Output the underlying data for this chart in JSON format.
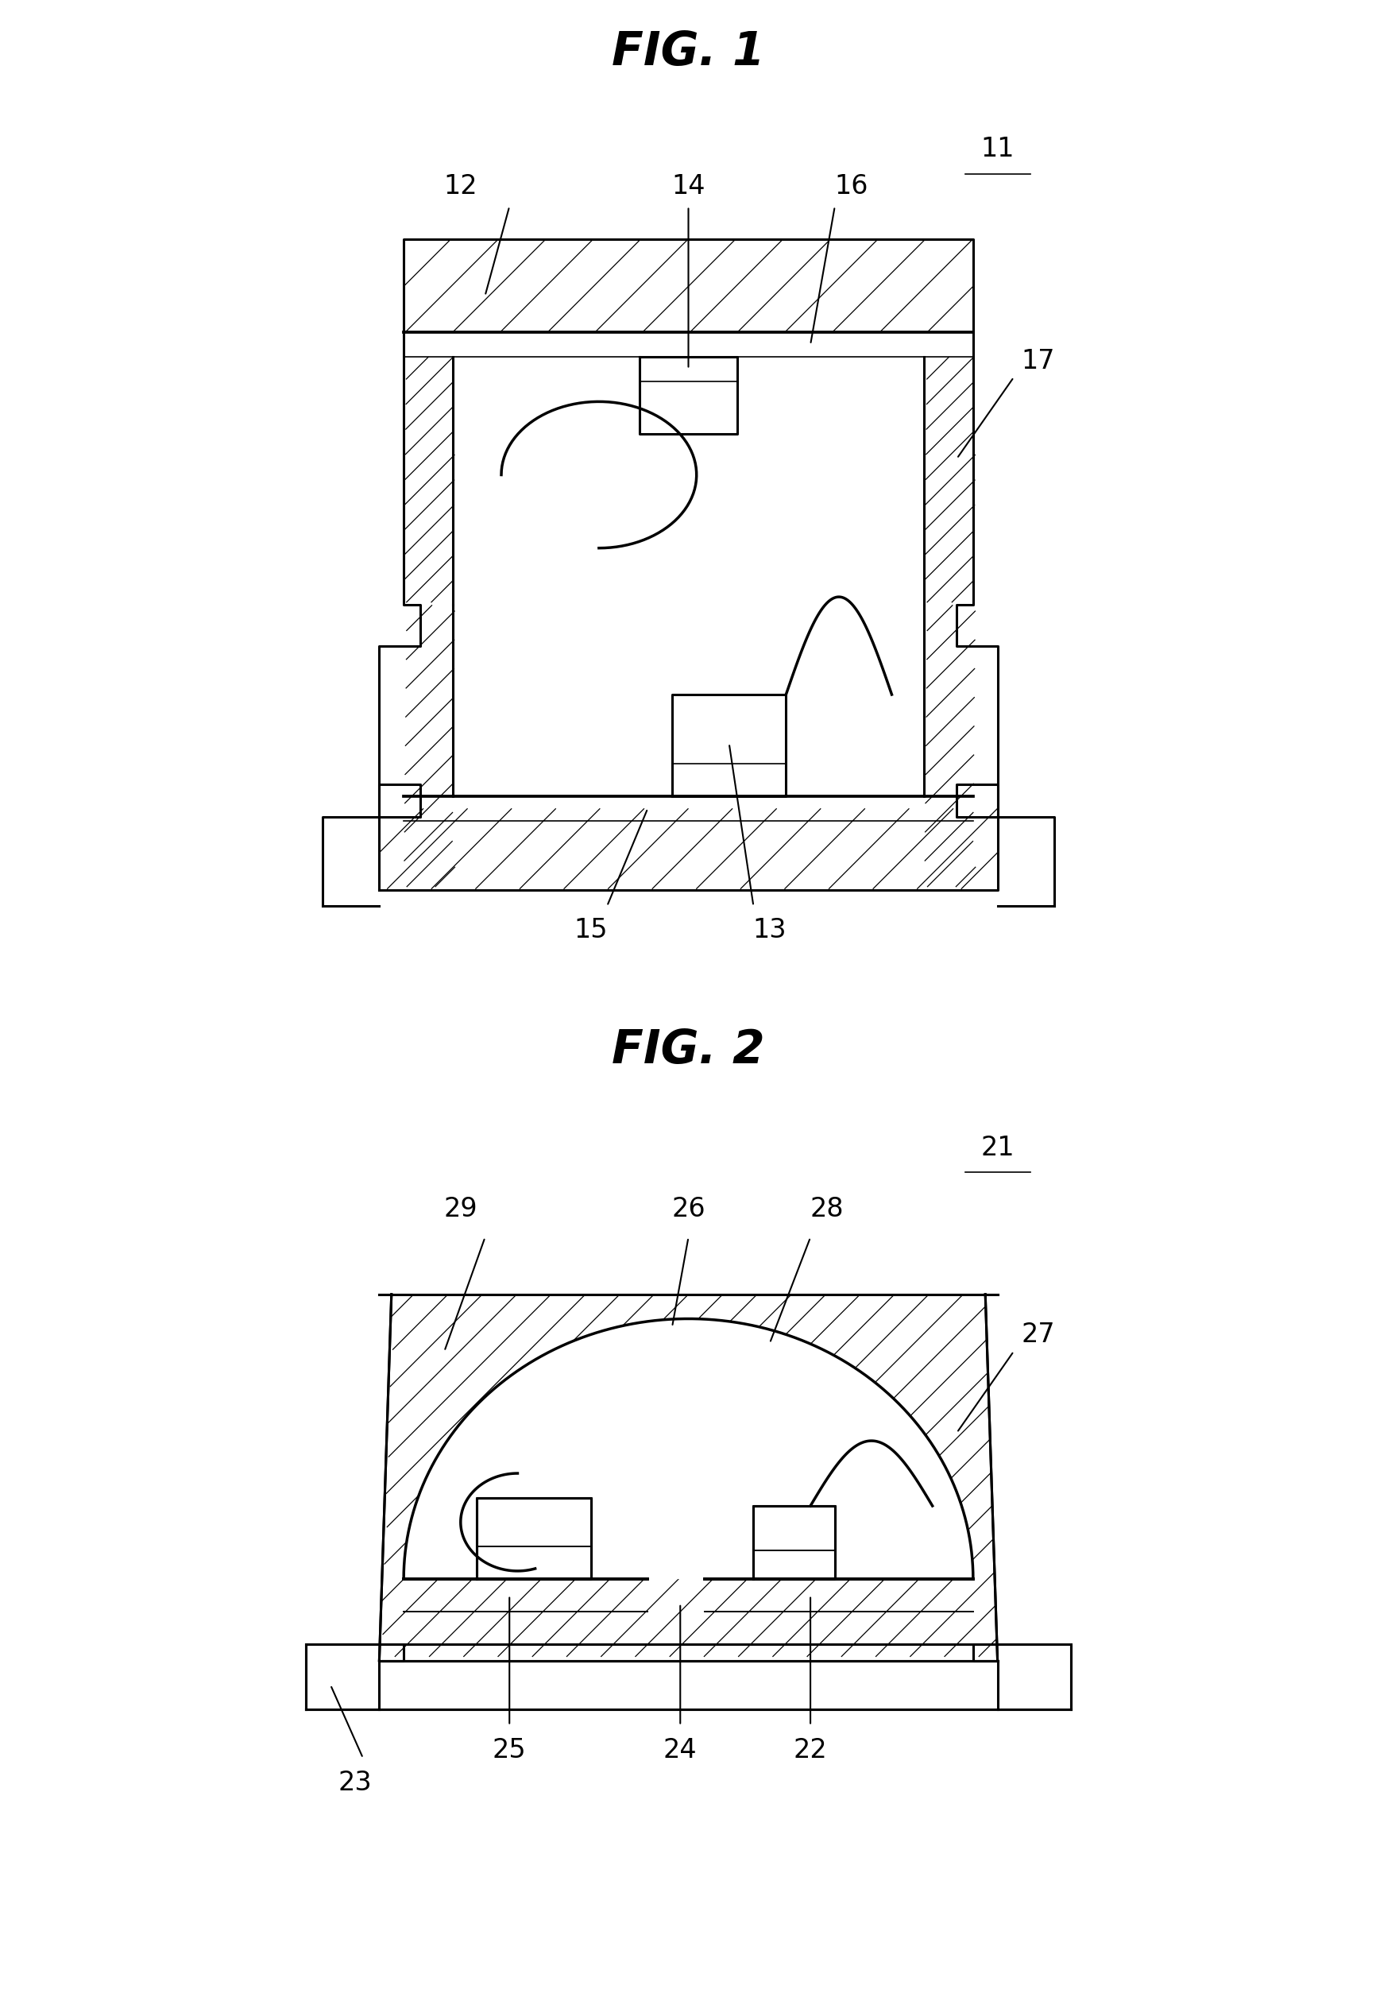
{
  "bg_color": "#ffffff",
  "fig1_title": "FIG. 1",
  "fig2_title": "FIG. 2",
  "fig1_ref": "11",
  "fig2_ref": "21",
  "lw_main": 2.2,
  "lw_thin": 1.2,
  "hatch_density": 16,
  "label_fontsize": 24,
  "title_fontsize": 42
}
